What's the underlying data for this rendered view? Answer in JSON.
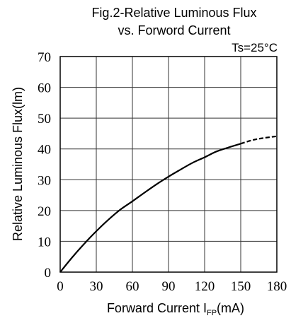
{
  "chart_data": {
    "type": "line",
    "title": "Fig.2-Relative Luminous Flux",
    "subtitle": "vs. Forword Current",
    "condition": "Ts=25°C",
    "xlabel": {
      "main": "Forward Current  I",
      "subscript": "FP",
      "unit": "(mA)"
    },
    "ylabel": "Relative Luminous Flux(lm)",
    "xlim": [
      0,
      180
    ],
    "ylim": [
      0,
      70
    ],
    "xticks": [
      0,
      30,
      60,
      90,
      120,
      150,
      180
    ],
    "yticks": [
      0,
      10,
      20,
      30,
      40,
      50,
      60,
      70
    ],
    "grid": true,
    "series": [
      {
        "style": "solid",
        "color": "#000000",
        "x": [
          0,
          10,
          20,
          30,
          40,
          50,
          60,
          70,
          80,
          90,
          100,
          110,
          120,
          130,
          140,
          150
        ],
        "y": [
          0,
          4.8,
          9.2,
          13.3,
          17.0,
          20.3,
          23.0,
          25.8,
          28.5,
          31.0,
          33.3,
          35.5,
          37.3,
          39.2,
          40.5,
          41.7
        ]
      },
      {
        "style": "dashed",
        "color": "#000000",
        "x": [
          150,
          160,
          170,
          180
        ],
        "y": [
          41.7,
          42.9,
          43.6,
          44.1
        ]
      }
    ]
  }
}
